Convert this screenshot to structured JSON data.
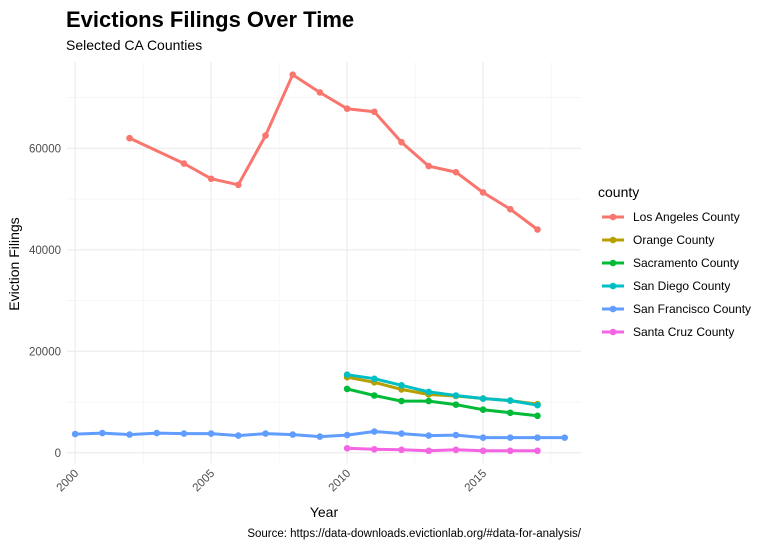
{
  "chart_data": {
    "type": "line",
    "title": "Evictions Filings Over Time",
    "subtitle": "Selected CA Counties",
    "xlabel": "Year",
    "ylabel": "Eviction Filings",
    "caption": "Source: https://data-downloads.evictionlab.org/#data-for-analysis/",
    "xlim": [
      1999.7,
      2018.6
    ],
    "ylim": [
      -2000,
      77000
    ],
    "x_ticks": [
      2000,
      2005,
      2010,
      2015
    ],
    "y_ticks": [
      0,
      20000,
      40000,
      60000
    ],
    "y_tick_labels": [
      "0",
      "20000",
      "40000",
      "60000"
    ],
    "grid": true,
    "legend_title": "county",
    "legend_position": "right",
    "series": [
      {
        "name": "Los Angeles County",
        "color": "#F8766D",
        "x": [
          2002,
          2004,
          2005,
          2006,
          2007,
          2008,
          2009,
          2010,
          2011,
          2012,
          2013,
          2014,
          2015,
          2016,
          2017
        ],
        "y": [
          62000,
          57000,
          54000,
          52800,
          62500,
          74500,
          71000,
          67800,
          67200,
          61200,
          56500,
          55300,
          51300,
          48000,
          44000
        ]
      },
      {
        "name": "Orange County",
        "color": "#B79F00",
        "x": [
          2010,
          2011,
          2012,
          2013,
          2014,
          2015,
          2016,
          2017
        ],
        "y": [
          14900,
          13900,
          12500,
          11500,
          11200,
          10700,
          10300,
          9600
        ]
      },
      {
        "name": "Sacramento County",
        "color": "#00BA38",
        "x": [
          2010,
          2011,
          2012,
          2013,
          2014,
          2015,
          2016,
          2017
        ],
        "y": [
          12600,
          11300,
          10200,
          10200,
          9500,
          8500,
          7900,
          7300
        ]
      },
      {
        "name": "San Diego County",
        "color": "#00BFC4",
        "x": [
          2010,
          2011,
          2012,
          2013,
          2014,
          2015,
          2016,
          2017
        ],
        "y": [
          15400,
          14600,
          13300,
          12000,
          11300,
          10700,
          10300,
          9400
        ]
      },
      {
        "name": "San Francisco County",
        "color": "#619CFF",
        "x": [
          2000,
          2001,
          2002,
          2003,
          2004,
          2005,
          2006,
          2007,
          2008,
          2009,
          2010,
          2011,
          2012,
          2013,
          2014,
          2015,
          2016,
          2017,
          2018
        ],
        "y": [
          3700,
          3900,
          3600,
          3900,
          3800,
          3800,
          3400,
          3800,
          3600,
          3200,
          3500,
          4200,
          3800,
          3400,
          3500,
          3000,
          3000,
          3000,
          3000
        ]
      },
      {
        "name": "Santa Cruz County",
        "color": "#F564E3",
        "x": [
          2010,
          2011,
          2012,
          2013,
          2014,
          2015,
          2016,
          2017
        ],
        "y": [
          900,
          700,
          600,
          400,
          600,
          400,
          400,
          400
        ]
      }
    ]
  }
}
